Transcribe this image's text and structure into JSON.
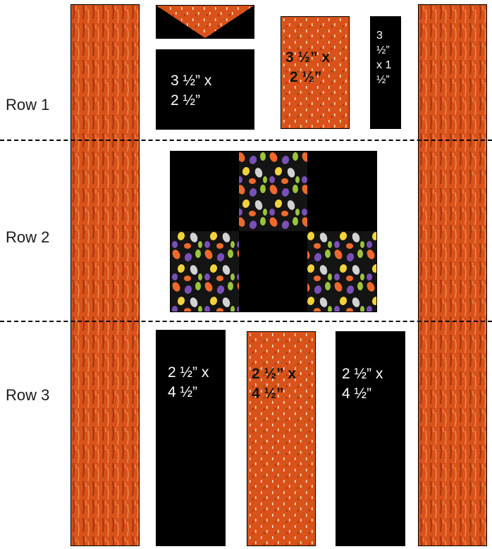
{
  "colors": {
    "black": "#000000",
    "orange": "#d8521a",
    "orange_dark": "#a2340d",
    "orange_light": "#f08a4a"
  },
  "rows": [
    {
      "label": "Row 1"
    },
    {
      "label": "Row 2"
    },
    {
      "label": "Row 3"
    }
  ],
  "row1": {
    "black_block_label": "3 ½” x\n2 ½”",
    "orange_block_label": "3 ½” x\n 2 ½”",
    "thin_block_label": "3\n½”\nx 1\n½”"
  },
  "row2": {
    "grid": [
      [
        "black",
        "print",
        "black"
      ],
      [
        "print",
        "black",
        "print"
      ]
    ]
  },
  "row3": {
    "left_label": "2 ½” x\n4 ½”",
    "center_label": "2 ½” x\n4 ½”",
    "right_label": "2 ½” x\n4 ½”"
  }
}
